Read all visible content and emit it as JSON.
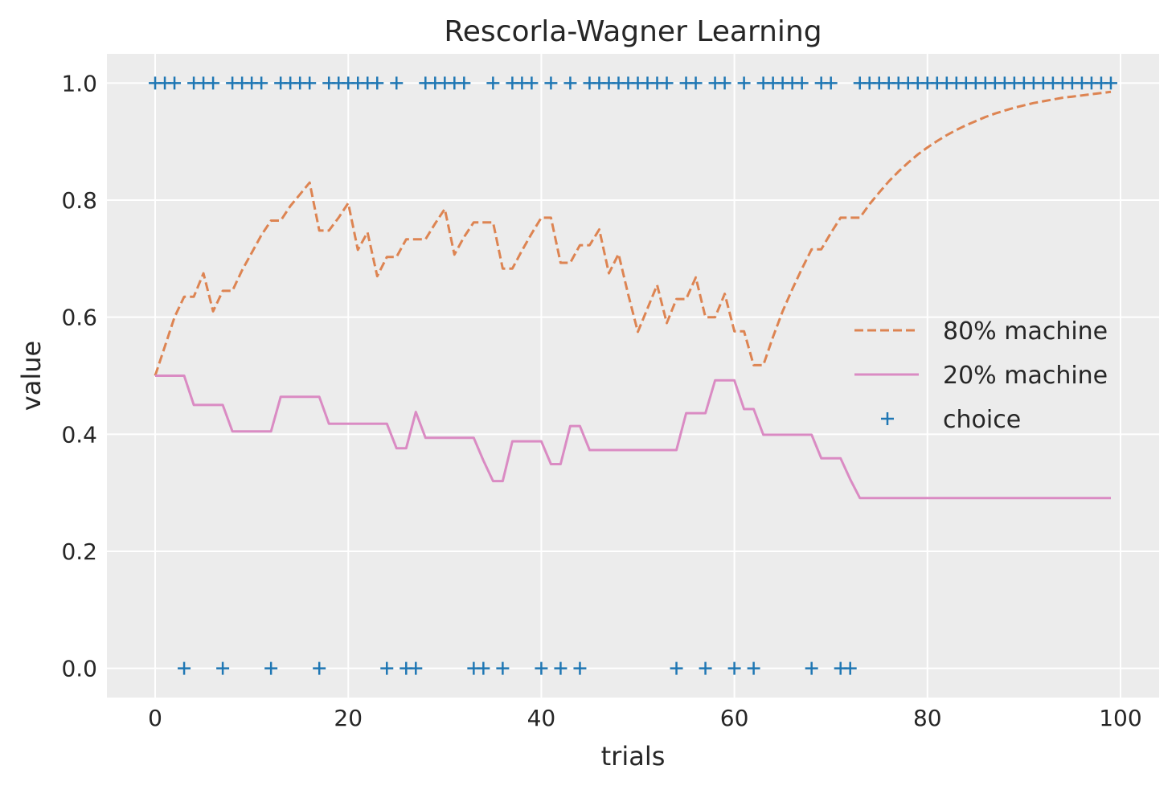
{
  "chart_data": {
    "type": "line",
    "title": "Rescorla-Wagner Learning",
    "xlabel": "trials",
    "ylabel": "value",
    "xlim": [
      -5,
      104
    ],
    "ylim": [
      -0.05,
      1.05
    ],
    "xticks": [
      0,
      20,
      40,
      60,
      80,
      100
    ],
    "yticks": [
      0.0,
      0.2,
      0.4,
      0.6,
      0.8,
      1.0
    ],
    "grid": true,
    "legend_position": "center-right",
    "series": [
      {
        "name": "80% machine",
        "style": "dashed",
        "color": "#dd8452",
        "x": [
          0,
          1,
          2,
          3,
          4,
          5,
          6,
          7,
          8,
          9,
          10,
          11,
          12,
          13,
          14,
          15,
          16,
          17,
          18,
          19,
          20,
          21,
          22,
          23,
          24,
          25,
          26,
          27,
          28,
          29,
          30,
          31,
          32,
          33,
          34,
          35,
          36,
          37,
          38,
          39,
          40,
          41,
          42,
          43,
          44,
          45,
          46,
          47,
          48,
          49,
          50,
          51,
          52,
          53,
          54,
          55,
          56,
          57,
          58,
          59,
          60,
          61,
          62,
          63,
          64,
          65,
          66,
          67,
          68,
          69,
          70,
          71,
          72,
          73,
          74,
          75,
          76,
          77,
          78,
          79,
          80,
          81,
          82,
          83,
          84,
          85,
          86,
          87,
          88,
          89,
          90,
          91,
          92,
          93,
          94,
          95,
          96,
          97,
          98,
          99
        ],
        "values": [
          0.5,
          0.55,
          0.6,
          0.635,
          0.635,
          0.675,
          0.61,
          0.645,
          0.645,
          0.68,
          0.71,
          0.74,
          0.765,
          0.765,
          0.79,
          0.81,
          0.83,
          0.748,
          0.748,
          0.77,
          0.795,
          0.715,
          0.745,
          0.67,
          0.703,
          0.703,
          0.733,
          0.733,
          0.733,
          0.76,
          0.785,
          0.707,
          0.737,
          0.762,
          0.762,
          0.762,
          0.683,
          0.683,
          0.714,
          0.743,
          0.77,
          0.77,
          0.693,
          0.693,
          0.723,
          0.723,
          0.75,
          0.675,
          0.708,
          0.639,
          0.575,
          0.615,
          0.655,
          0.59,
          0.631,
          0.631,
          0.668,
          0.6,
          0.6,
          0.64,
          0.576,
          0.576,
          0.518,
          0.518,
          0.566,
          0.61,
          0.648,
          0.683,
          0.716,
          0.716,
          0.744,
          0.77,
          0.77,
          0.77,
          0.793,
          0.813,
          0.832,
          0.849,
          0.864,
          0.878,
          0.89,
          0.901,
          0.911,
          0.92,
          0.928,
          0.935,
          0.942,
          0.948,
          0.953,
          0.958,
          0.962,
          0.966,
          0.969,
          0.972,
          0.975,
          0.977,
          0.979,
          0.981,
          0.983,
          0.985
        ]
      },
      {
        "name": "20% machine",
        "style": "solid",
        "color": "#da8bc3",
        "x": [
          0,
          1,
          2,
          3,
          4,
          5,
          6,
          7,
          8,
          9,
          10,
          11,
          12,
          13,
          14,
          15,
          16,
          17,
          18,
          19,
          20,
          21,
          22,
          23,
          24,
          25,
          26,
          27,
          28,
          29,
          30,
          31,
          32,
          33,
          34,
          35,
          36,
          37,
          38,
          39,
          40,
          41,
          42,
          43,
          44,
          45,
          46,
          47,
          48,
          49,
          50,
          51,
          52,
          53,
          54,
          55,
          56,
          57,
          58,
          59,
          60,
          61,
          62,
          63,
          64,
          65,
          66,
          67,
          68,
          69,
          70,
          71,
          72,
          73,
          74,
          75,
          76,
          77,
          78,
          79,
          80,
          81,
          82,
          83,
          84,
          85,
          86,
          87,
          88,
          89,
          90,
          91,
          92,
          93,
          94,
          95,
          96,
          97,
          98,
          99
        ],
        "values": [
          0.5,
          0.5,
          0.5,
          0.5,
          0.45,
          0.45,
          0.45,
          0.45,
          0.405,
          0.405,
          0.405,
          0.405,
          0.405,
          0.464,
          0.464,
          0.464,
          0.464,
          0.464,
          0.418,
          0.418,
          0.418,
          0.418,
          0.418,
          0.418,
          0.418,
          0.376,
          0.376,
          0.438,
          0.394,
          0.394,
          0.394,
          0.394,
          0.394,
          0.394,
          0.355,
          0.32,
          0.32,
          0.388,
          0.388,
          0.388,
          0.388,
          0.349,
          0.349,
          0.414,
          0.414,
          0.373,
          0.373,
          0.373,
          0.373,
          0.373,
          0.373,
          0.373,
          0.373,
          0.373,
          0.373,
          0.436,
          0.436,
          0.436,
          0.492,
          0.492,
          0.492,
          0.443,
          0.443,
          0.399,
          0.399,
          0.399,
          0.399,
          0.399,
          0.399,
          0.359,
          0.359,
          0.359,
          0.323,
          0.291,
          0.291,
          0.291,
          0.291,
          0.291,
          0.291,
          0.291,
          0.291,
          0.291,
          0.291,
          0.291,
          0.291,
          0.291,
          0.291,
          0.291,
          0.291,
          0.291,
          0.291,
          0.291,
          0.291,
          0.291,
          0.291,
          0.291,
          0.291,
          0.291,
          0.291,
          0.291
        ]
      },
      {
        "name": "choice",
        "style": "marker-plus",
        "color": "#1f77b4",
        "x": [
          0,
          1,
          2,
          3,
          4,
          5,
          6,
          7,
          8,
          9,
          10,
          11,
          12,
          13,
          14,
          15,
          16,
          17,
          18,
          19,
          20,
          21,
          22,
          23,
          24,
          25,
          26,
          27,
          28,
          29,
          30,
          31,
          32,
          33,
          34,
          35,
          36,
          37,
          38,
          39,
          40,
          41,
          42,
          43,
          44,
          45,
          46,
          47,
          48,
          49,
          50,
          51,
          52,
          53,
          54,
          55,
          56,
          57,
          58,
          59,
          60,
          61,
          62,
          63,
          64,
          65,
          66,
          67,
          68,
          69,
          70,
          71,
          72,
          73,
          74,
          75,
          76,
          77,
          78,
          79,
          80,
          81,
          82,
          83,
          84,
          85,
          86,
          87,
          88,
          89,
          90,
          91,
          92,
          93,
          94,
          95,
          96,
          97,
          98,
          99
        ],
        "values": [
          1,
          1,
          1,
          0,
          1,
          1,
          1,
          0,
          1,
          1,
          1,
          1,
          0,
          1,
          1,
          1,
          1,
          0,
          1,
          1,
          1,
          1,
          1,
          1,
          0,
          1,
          0,
          0,
          1,
          1,
          1,
          1,
          1,
          0,
          0,
          1,
          0,
          1,
          1,
          1,
          0,
          1,
          0,
          1,
          0,
          1,
          1,
          1,
          1,
          1,
          1,
          1,
          1,
          1,
          0,
          1,
          1,
          0,
          1,
          1,
          0,
          1,
          0,
          1,
          1,
          1,
          1,
          1,
          0,
          1,
          1,
          0,
          0,
          1,
          1,
          1,
          1,
          1,
          1,
          1,
          1,
          1,
          1,
          1,
          1,
          1,
          1,
          1,
          1,
          1,
          1,
          1,
          1,
          1,
          1,
          1,
          1,
          1,
          1,
          1
        ]
      }
    ]
  }
}
